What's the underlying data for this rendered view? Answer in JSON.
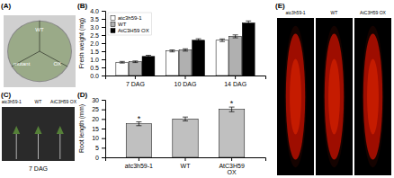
{
  "chart_data": [
    {
      "type": "image",
      "title": "(A)",
      "annotations": [
        "WT",
        "mutant",
        "OX"
      ]
    },
    {
      "type": "bar",
      "title": "(B)",
      "categories": [
        "7 DAG",
        "10 DAG",
        "14 DAG"
      ],
      "series": [
        {
          "name": "atc3h59-1",
          "color": "white",
          "values": [
            0.82,
            1.52,
            2.18
          ],
          "errors": [
            0.05,
            0.06,
            0.08
          ]
        },
        {
          "name": "WT",
          "color": "#b0b0b0",
          "values": [
            0.85,
            1.58,
            2.42
          ],
          "errors": [
            0.05,
            0.07,
            0.09
          ]
        },
        {
          "name": "AtC3H59 OX",
          "color": "black",
          "values": [
            1.18,
            2.18,
            3.25
          ],
          "errors": [
            0.07,
            0.09,
            0.12
          ]
        }
      ],
      "ylabel": "Fresh weight (mg)",
      "ylim": [
        0,
        4
      ],
      "yticks": [
        {
          "value": 0,
          "label": "0.0"
        },
        0.5,
        {
          "value": 1.0,
          "label": "1.0"
        },
        1.5,
        {
          "value": 2.0,
          "label": "2.0"
        },
        2.5,
        {
          "value": 3.0,
          "label": "3.0"
        },
        3.5,
        {
          "value": 4.0,
          "label": "4.0"
        }
      ],
      "legend": "upper left",
      "grid": false
    },
    {
      "type": "image",
      "title": "(C)",
      "annotations": [
        "atc3h59-1",
        "WT",
        "AtC3H59 OX"
      ],
      "xlabel": "7 DAG"
    },
    {
      "type": "bar",
      "title": "(D)",
      "categories": [
        "atc3h59-1",
        "WT",
        "AtC3H59\nOX"
      ],
      "values": [
        17.5,
        20.0,
        25.0
      ],
      "errors": [
        1.0,
        1.0,
        1.2
      ],
      "color": "#c0c0c0",
      "ylabel": "Root length (mm)",
      "ylim": [
        0,
        30
      ],
      "yticks": [
        0,
        5,
        10,
        15,
        20,
        25,
        30
      ],
      "annotations": [
        {
          "text": "*",
          "category": "atc3h59-1"
        },
        {
          "text": "*",
          "category": "AtC3H59\nOX"
        }
      ],
      "grid": false
    },
    {
      "type": "image",
      "title": "(E)",
      "annotations": [
        "atc3h59-1",
        "WT",
        "AtC3H59 OX"
      ]
    }
  ]
}
